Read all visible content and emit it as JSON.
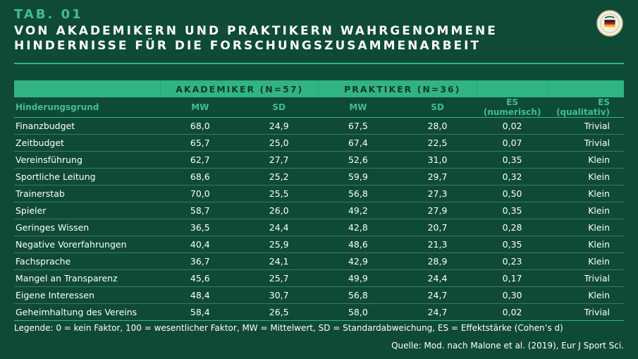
{
  "header": {
    "tab": "TAB. 01",
    "title_line1": "VON AKADEMIKERN UND PRAKTIKERN WAHRGENOMMENE",
    "title_line2": "HINDERNISSE FÜR DIE FORSCHUNGSZUSAMMENARBEIT"
  },
  "colors": {
    "background": "#0f4a37",
    "accent": "#2fb584",
    "header_text": "#3fbf8f"
  },
  "table": {
    "group_akademiker": "AKADEMIKER (N=57)",
    "group_praktiker": "PRAKTIKER (N=36)",
    "columns": [
      "Hinderungsgrund",
      "MW",
      "SD",
      "MW",
      "SD",
      "ES (numerisch)",
      "ES (qualitativ)"
    ],
    "rows": [
      [
        "Finanzbudget",
        "68,0",
        "24,9",
        "67,5",
        "28,0",
        "0,02",
        "Trivial"
      ],
      [
        "Zeitbudget",
        "65,7",
        "25,0",
        "67,4",
        "22,5",
        "0,07",
        "Trivial"
      ],
      [
        "Vereinsführung",
        "62,7",
        "27,7",
        "52,6",
        "31,0",
        "0,35",
        "Klein"
      ],
      [
        "Sportliche Leitung",
        "68,6",
        "25,2",
        "59,9",
        "29,7",
        "0,32",
        "Klein"
      ],
      [
        "Trainerstab",
        "70,0",
        "25,5",
        "56,8",
        "27,3",
        "0,50",
        "Klein"
      ],
      [
        "Spieler",
        "58,7",
        "26,0",
        "49,2",
        "27,9",
        "0,35",
        "Klein"
      ],
      [
        "Geringes Wissen",
        "36,5",
        "24,4",
        "42,8",
        "20,7",
        "0,28",
        "Klein"
      ],
      [
        "Negative Vorerfahrungen",
        "40,4",
        "25,9",
        "48,6",
        "21,3",
        "0,35",
        "Klein"
      ],
      [
        "Fachsprache",
        "36,7",
        "24,1",
        "42,9",
        "28,9",
        "0,23",
        "Klein"
      ],
      [
        "Mangel an Transparenz",
        "45,6",
        "25,7",
        "49,9",
        "24,4",
        "0,17",
        "Trivial"
      ],
      [
        "Eigene Interessen",
        "48,4",
        "30,7",
        "56,8",
        "24,7",
        "0,30",
        "Klein"
      ],
      [
        "Geheimhaltung des Vereins",
        "58,4",
        "26,5",
        "58,0",
        "24,7",
        "0,02",
        "Trivial"
      ]
    ]
  },
  "footer": {
    "legend": "Legende: 0 = kein Faktor, 100 = wesentlicher Faktor, MW = Mittelwert, SD = Standardabweichung, ES = Effektstärke (Cohen’s d)",
    "source": "Quelle: Mod. nach Malone et al. (2019), Eur J Sport Sci."
  },
  "logo": {
    "icon": "dfb-logo-icon"
  }
}
